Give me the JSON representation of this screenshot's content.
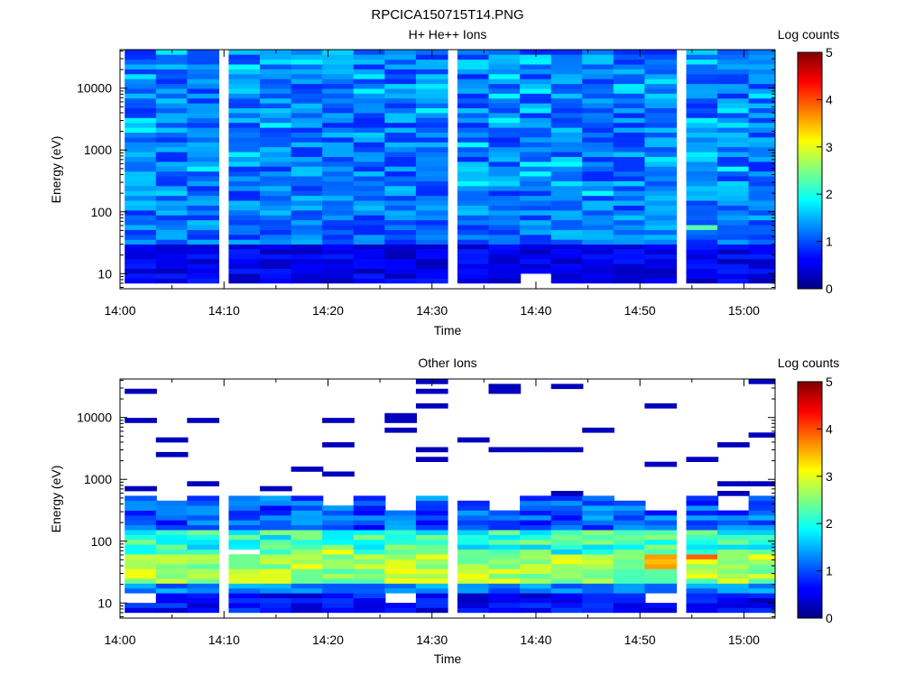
{
  "figure": {
    "title": "RPCICA150715T14.PNG"
  },
  "colors": {
    "axis": "#000000",
    "background": "#ffffff",
    "colormap": "jet"
  },
  "chart_data": [
    {
      "type": "heatmap",
      "title": "H+ He++ Ions",
      "xlabel": "Time",
      "ylabel": "Energy (eV)",
      "y_scale": "log",
      "xlim": [
        "14:00",
        "15:03"
      ],
      "ylim": [
        5.7,
        42000
      ],
      "x_ticks": [
        "14:00",
        "14:10",
        "14:20",
        "14:30",
        "14:40",
        "14:50",
        "15:00"
      ],
      "y_ticks": [
        10,
        100,
        1000,
        10000
      ],
      "y_tick_labels": [
        "10",
        "100",
        "1000",
        "10000"
      ],
      "time_bins": [
        "14:02",
        "14:05",
        "14:08",
        "14:12",
        "14:15",
        "14:18",
        "14:21",
        "14:24",
        "14:27",
        "14:30",
        "14:34",
        "14:37",
        "14:40",
        "14:43",
        "14:46",
        "14:49",
        "14:52",
        "14:56",
        "14:59",
        "15:02"
      ],
      "colorbar": {
        "label": "Log counts",
        "range": [
          0,
          5
        ],
        "ticks": [
          0,
          1,
          2,
          3,
          4,
          5
        ]
      },
      "description_of_values": "Mostly log counts 0.7-1.6 across all energies; lower (0.2-0.6) near 10-30 eV; one cell ~2.3 near 55 eV at 14:58; empty cell near 9 eV at 14:45"
    },
    {
      "type": "heatmap",
      "title": "Other Ions",
      "xlabel": "Time",
      "ylabel": "Energy (eV)",
      "y_scale": "log",
      "xlim": [
        "14:00",
        "15:03"
      ],
      "ylim": [
        5.7,
        42000
      ],
      "x_ticks": [
        "14:00",
        "14:10",
        "14:20",
        "14:30",
        "14:40",
        "14:50",
        "15:00"
      ],
      "y_ticks": [
        10,
        100,
        1000,
        10000
      ],
      "y_tick_labels": [
        "10",
        "100",
        "1000",
        "10000"
      ],
      "time_bins": [
        "14:02",
        "14:05",
        "14:08",
        "14:12",
        "14:15",
        "14:18",
        "14:21",
        "14:24",
        "14:27",
        "14:30",
        "14:34",
        "14:37",
        "14:40",
        "14:43",
        "14:46",
        "14:49",
        "14:52",
        "14:56",
        "14:59",
        "15:02"
      ],
      "colorbar": {
        "label": "Log counts",
        "range": [
          0,
          5
        ],
        "ticks": [
          0,
          1,
          2,
          3,
          4,
          5
        ]
      },
      "description_of_values": "Sparse single counts (log ~0.3) above ~700 eV; dense band 20-400 eV with log counts 1.5-3.2; peaks ~3.8 near 40-55 eV at 14:55-14:58"
    }
  ]
}
